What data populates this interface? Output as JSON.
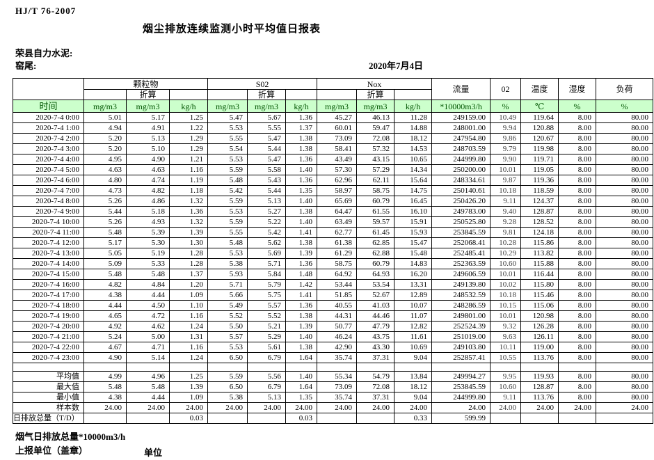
{
  "header": {
    "standard_no": "HJ/T  76-2007",
    "title": "烟尘排放连续监测小时平均值日报表",
    "company": "荣县自力水泥:",
    "site": "窑尾:",
    "date": "2020年7月4日"
  },
  "table": {
    "time_header": "时间",
    "converted_label": "折算",
    "group_headers": {
      "pm": "颗粒物",
      "so2": "S02",
      "nox": "Nox"
    },
    "flow_header": "流量",
    "o2_header": "02",
    "temp_header": "温度",
    "humidity_header": "湿度",
    "load_header": "负荷",
    "units": [
      "mg/m3",
      "mg/m3",
      "kg/h",
      "mg/m3",
      "mg/m3",
      "kg/h",
      "mg/m3",
      "mg/m3",
      "kg/h",
      "*10000m3/h",
      "%",
      "℃",
      "%",
      "%"
    ],
    "rows": [
      {
        "time": "2020-7-4 0:00",
        "values": [
          "5.01",
          "5.17",
          "1.25",
          "5.47",
          "5.67",
          "1.36",
          "45.27",
          "46.13",
          "11.28",
          "249159.00",
          "10.49",
          "119.64",
          "8.00",
          "80.00"
        ]
      },
      {
        "time": "2020-7-4 1:00",
        "values": [
          "4.94",
          "4.91",
          "1.22",
          "5.53",
          "5.55",
          "1.37",
          "60.01",
          "59.47",
          "14.88",
          "248001.00",
          "9.94",
          "120.88",
          "8.00",
          "80.00"
        ]
      },
      {
        "time": "2020-7-4 2:00",
        "values": [
          "5.20",
          "5.13",
          "1.29",
          "5.55",
          "5.47",
          "1.38",
          "73.09",
          "72.08",
          "18.12",
          "247954.80",
          "9.86",
          "120.67",
          "8.00",
          "80.00"
        ]
      },
      {
        "time": "2020-7-4 3:00",
        "values": [
          "5.20",
          "5.10",
          "1.29",
          "5.54",
          "5.44",
          "1.38",
          "58.41",
          "57.32",
          "14.53",
          "248703.59",
          "9.79",
          "119.98",
          "8.00",
          "80.00"
        ]
      },
      {
        "time": "2020-7-4 4:00",
        "values": [
          "4.95",
          "4.90",
          "1.21",
          "5.53",
          "5.47",
          "1.36",
          "43.49",
          "43.15",
          "10.65",
          "244999.80",
          "9.90",
          "119.71",
          "8.00",
          "80.00"
        ]
      },
      {
        "time": "2020-7-4 5:00",
        "values": [
          "4.63",
          "4.63",
          "1.16",
          "5.59",
          "5.58",
          "1.40",
          "57.30",
          "57.29",
          "14.34",
          "250200.00",
          "10.01",
          "119.05",
          "8.00",
          "80.00"
        ]
      },
      {
        "time": "2020-7-4 6:00",
        "values": [
          "4.80",
          "4.74",
          "1.19",
          "5.48",
          "5.43",
          "1.36",
          "62.96",
          "62.11",
          "15.64",
          "248334.61",
          "9.87",
          "119.36",
          "8.00",
          "80.00"
        ]
      },
      {
        "time": "2020-7-4 7:00",
        "values": [
          "4.73",
          "4.82",
          "1.18",
          "5.42",
          "5.44",
          "1.35",
          "58.97",
          "58.75",
          "14.75",
          "250140.61",
          "10.18",
          "118.59",
          "8.00",
          "80.00"
        ]
      },
      {
        "time": "2020-7-4 8:00",
        "values": [
          "5.26",
          "4.86",
          "1.32",
          "5.59",
          "5.13",
          "1.40",
          "65.69",
          "60.79",
          "16.45",
          "250426.20",
          "9.11",
          "124.37",
          "8.00",
          "80.00"
        ]
      },
      {
        "time": "2020-7-4 9:00",
        "values": [
          "5.44",
          "5.18",
          "1.36",
          "5.53",
          "5.27",
          "1.38",
          "64.47",
          "61.55",
          "16.10",
          "249783.00",
          "9.40",
          "128.87",
          "8.00",
          "80.00"
        ]
      },
      {
        "time": "2020-7-4 10:00",
        "values": [
          "5.26",
          "4.93",
          "1.32",
          "5.59",
          "5.22",
          "1.40",
          "63.49",
          "59.57",
          "15.91",
          "250525.80",
          "9.28",
          "128.52",
          "8.00",
          "80.00"
        ]
      },
      {
        "time": "2020-7-4 11:00",
        "values": [
          "5.48",
          "5.39",
          "1.39",
          "5.55",
          "5.42",
          "1.41",
          "62.77",
          "61.45",
          "15.93",
          "253845.59",
          "9.81",
          "124.18",
          "8.00",
          "80.00"
        ]
      },
      {
        "time": "2020-7-4 12:00",
        "values": [
          "5.17",
          "5.30",
          "1.30",
          "5.48",
          "5.62",
          "1.38",
          "61.38",
          "62.85",
          "15.47",
          "252068.41",
          "10.28",
          "115.86",
          "8.00",
          "80.00"
        ]
      },
      {
        "time": "2020-7-4 13:00",
        "values": [
          "5.05",
          "5.19",
          "1.28",
          "5.53",
          "5.69",
          "1.39",
          "61.29",
          "62.88",
          "15.48",
          "252485.41",
          "10.29",
          "113.82",
          "8.00",
          "80.00"
        ]
      },
      {
        "time": "2020-7-4 14:00",
        "values": [
          "5.09",
          "5.33",
          "1.28",
          "5.38",
          "5.71",
          "1.36",
          "58.75",
          "60.79",
          "14.83",
          "252363.59",
          "10.60",
          "115.88",
          "8.00",
          "80.00"
        ]
      },
      {
        "time": "2020-7-4 15:00",
        "values": [
          "5.48",
          "5.48",
          "1.37",
          "5.93",
          "5.84",
          "1.48",
          "64.92",
          "64.93",
          "16.20",
          "249606.59",
          "10.01",
          "116.44",
          "8.00",
          "80.00"
        ]
      },
      {
        "time": "2020-7-4 16:00",
        "values": [
          "4.82",
          "4.84",
          "1.20",
          "5.71",
          "5.79",
          "1.42",
          "53.44",
          "53.54",
          "13.31",
          "249139.80",
          "10.02",
          "115.80",
          "8.00",
          "80.00"
        ]
      },
      {
        "time": "2020-7-4 17:00",
        "values": [
          "4.38",
          "4.44",
          "1.09",
          "5.66",
          "5.75",
          "1.41",
          "51.85",
          "52.67",
          "12.89",
          "248532.59",
          "10.18",
          "115.46",
          "8.00",
          "80.00"
        ]
      },
      {
        "time": "2020-7-4 18:00",
        "values": [
          "4.44",
          "4.50",
          "1.10",
          "5.49",
          "5.57",
          "1.36",
          "40.55",
          "41.03",
          "10.07",
          "248286.59",
          "10.15",
          "115.06",
          "8.00",
          "80.00"
        ]
      },
      {
        "time": "2020-7-4 19:00",
        "values": [
          "4.65",
          "4.72",
          "1.16",
          "5.52",
          "5.52",
          "1.38",
          "44.31",
          "44.46",
          "11.07",
          "249801.00",
          "10.01",
          "120.98",
          "8.00",
          "80.00"
        ]
      },
      {
        "time": "2020-7-4 20:00",
        "values": [
          "4.92",
          "4.62",
          "1.24",
          "5.50",
          "5.21",
          "1.39",
          "50.77",
          "47.79",
          "12.82",
          "252524.39",
          "9.32",
          "126.28",
          "8.00",
          "80.00"
        ]
      },
      {
        "time": "2020-7-4 21:00",
        "values": [
          "5.24",
          "5.00",
          "1.31",
          "5.57",
          "5.29",
          "1.40",
          "46.24",
          "43.75",
          "11.61",
          "251019.00",
          "9.63",
          "126.11",
          "8.00",
          "80.00"
        ]
      },
      {
        "time": "2020-7-4 22:00",
        "values": [
          "4.67",
          "4.71",
          "1.16",
          "5.53",
          "5.61",
          "1.38",
          "42.90",
          "43.30",
          "10.69",
          "249103.80",
          "10.11",
          "119.00",
          "8.00",
          "80.00"
        ]
      },
      {
        "time": "2020-7-4 23:00",
        "values": [
          "4.90",
          "5.14",
          "1.24",
          "6.50",
          "6.79",
          "1.64",
          "35.74",
          "37.31",
          "9.04",
          "252857.41",
          "10.55",
          "113.76",
          "8.00",
          "80.00"
        ]
      }
    ],
    "summary": [
      {
        "label": "平均值",
        "values": [
          "4.99",
          "4.96",
          "1.25",
          "5.59",
          "5.56",
          "1.40",
          "55.34",
          "54.79",
          "13.84",
          "249994.27",
          "9.95",
          "119.93",
          "8.00",
          "80.00"
        ]
      },
      {
        "label": "最大值",
        "values": [
          "5.48",
          "5.48",
          "1.39",
          "6.50",
          "6.79",
          "1.64",
          "73.09",
          "72.08",
          "18.12",
          "253845.59",
          "10.60",
          "128.87",
          "8.00",
          "80.00"
        ]
      },
      {
        "label": "最小值",
        "values": [
          "4.38",
          "4.44",
          "1.09",
          "5.38",
          "5.13",
          "1.35",
          "35.74",
          "37.31",
          "9.04",
          "244999.80",
          "9.11",
          "113.76",
          "8.00",
          "80.00"
        ]
      },
      {
        "label": "样本数",
        "values": [
          "24.00",
          "24.00",
          "24.00",
          "24.00",
          "24.00",
          "24.00",
          "24.00",
          "24.00",
          "24.00",
          "24.00",
          "24.00",
          "24.00",
          "24.00",
          "24.00"
        ]
      },
      {
        "label": "日排放总量（T/D）",
        "values": [
          "",
          "",
          "0.03",
          "",
          "",
          "0.03",
          "",
          "",
          "0.33",
          "599.99",
          "",
          "",
          "",
          ""
        ]
      }
    ]
  },
  "footer": {
    "gas_total_label": "烟气日排放总量*10000m3/h",
    "report_unit_label": "上报单位（盖章）",
    "unit_label": "单位"
  },
  "colors": {
    "header_row_bg": "#ccffcc",
    "header_row_text": "#005500",
    "border": "#000000"
  }
}
